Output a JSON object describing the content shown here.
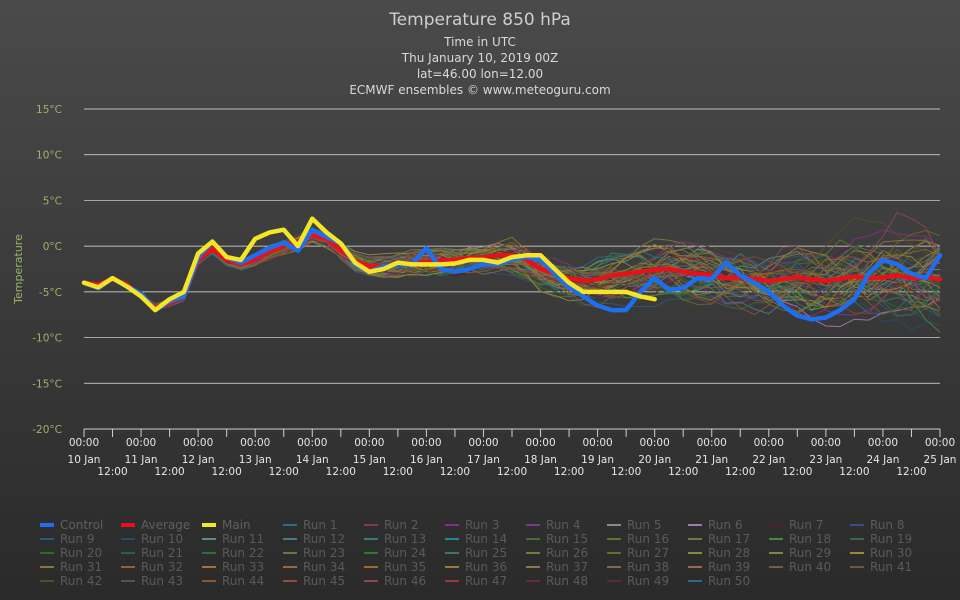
{
  "chart_data": {
    "type": "line",
    "title": "Temperature 850 hPa",
    "subtitles": [
      "Time in UTC",
      "Thu January 10, 2019 00Z",
      "lat=46.00 lon=12.00",
      "ECMWF ensembles © www.meteoguru.com"
    ],
    "ylabel": "Temperature",
    "unit": "°C",
    "ylim": [
      -20,
      15
    ],
    "yticks": [
      15,
      10,
      5,
      0,
      -5,
      -10,
      -15,
      -20
    ],
    "ytick_labels": [
      "15°C",
      "10°C",
      "5°C",
      "0°C",
      "-5°C",
      "-10°C",
      "-15°C",
      "-20°C"
    ],
    "xrange": [
      "2019-01-10 00:00",
      "2019-01-25 00:00"
    ],
    "xticks_major": [
      {
        "time": "00:00",
        "date": "10 Jan"
      },
      {
        "time": "00:00",
        "date": "11 Jan"
      },
      {
        "time": "00:00",
        "date": "12 Jan"
      },
      {
        "time": "00:00",
        "date": "13 Jan"
      },
      {
        "time": "00:00",
        "date": "14 Jan"
      },
      {
        "time": "00:00",
        "date": "15 Jan"
      },
      {
        "time": "00:00",
        "date": "16 Jan"
      },
      {
        "time": "00:00",
        "date": "17 Jan"
      },
      {
        "time": "00:00",
        "date": "18 Jan"
      },
      {
        "time": "00:00",
        "date": "19 Jan"
      },
      {
        "time": "00:00",
        "date": "20 Jan"
      },
      {
        "time": "00:00",
        "date": "21 Jan"
      },
      {
        "time": "00:00",
        "date": "22 Jan"
      },
      {
        "time": "00:00",
        "date": "23 Jan"
      },
      {
        "time": "00:00",
        "date": "24 Jan"
      },
      {
        "time": "00:00",
        "date": "25 Jan"
      }
    ],
    "xticks_minor": [
      "12:00",
      "12:00",
      "12:00",
      "12:00",
      "12:00",
      "12:00",
      "12:00",
      "12:00",
      "12:00",
      "12:00",
      "12:00",
      "12:00",
      "12:00",
      "12:00",
      "12:00"
    ],
    "grid": true,
    "legend_position": "bottom",
    "series": [
      {
        "name": "Control",
        "color": "#1e6ff0",
        "width": 4.5,
        "points": [
          [
            "2019-01-10 00:00",
            -4
          ],
          [
            "2019-01-10 06:00",
            -4.6
          ],
          [
            "2019-01-10 12:00",
            -3.5
          ],
          [
            "2019-01-10 18:00",
            -4.4
          ],
          [
            "2019-01-11 00:00",
            -5.2
          ],
          [
            "2019-01-11 06:00",
            -7
          ],
          [
            "2019-01-11 12:00",
            -6
          ],
          [
            "2019-01-11 18:00",
            -5.5
          ],
          [
            "2019-01-12 00:00",
            -1.2
          ],
          [
            "2019-01-12 06:00",
            0.5
          ],
          [
            "2019-01-12 12:00",
            -1.2
          ],
          [
            "2019-01-12 18:00",
            -1.8
          ],
          [
            "2019-01-13 00:00",
            -1
          ],
          [
            "2019-01-13 06:00",
            -0.2
          ],
          [
            "2019-01-13 12:00",
            0.4
          ],
          [
            "2019-01-13 18:00",
            -0.5
          ],
          [
            "2019-01-14 00:00",
            1.8
          ],
          [
            "2019-01-14 06:00",
            1
          ],
          [
            "2019-01-14 12:00",
            0.3
          ],
          [
            "2019-01-14 18:00",
            -2
          ],
          [
            "2019-01-15 00:00",
            -2.8
          ],
          [
            "2019-01-15 06:00",
            -2.2
          ],
          [
            "2019-01-15 12:00",
            -2
          ],
          [
            "2019-01-15 18:00",
            -2
          ],
          [
            "2019-01-16 00:00",
            -0.2
          ],
          [
            "2019-01-16 06:00",
            -2.5
          ],
          [
            "2019-01-16 12:00",
            -2.8
          ],
          [
            "2019-01-16 18:00",
            -2.5
          ],
          [
            "2019-01-17 00:00",
            -2
          ],
          [
            "2019-01-17 06:00",
            -2
          ],
          [
            "2019-01-17 12:00",
            -1.5
          ],
          [
            "2019-01-17 18:00",
            -1.2
          ],
          [
            "2019-01-18 00:00",
            -1.5
          ],
          [
            "2019-01-18 06:00",
            -3
          ],
          [
            "2019-01-18 12:00",
            -4.5
          ],
          [
            "2019-01-18 18:00",
            -5.5
          ],
          [
            "2019-01-19 00:00",
            -6.5
          ],
          [
            "2019-01-19 06:00",
            -7
          ],
          [
            "2019-01-19 12:00",
            -7
          ],
          [
            "2019-01-19 18:00",
            -5
          ],
          [
            "2019-01-20 00:00",
            -3.5
          ],
          [
            "2019-01-20 06:00",
            -4.8
          ],
          [
            "2019-01-20 12:00",
            -4.6
          ],
          [
            "2019-01-20 18:00",
            -3.5
          ],
          [
            "2019-01-21 00:00",
            -3.6
          ],
          [
            "2019-01-21 06:00",
            -1.8
          ],
          [
            "2019-01-21 12:00",
            -3.2
          ],
          [
            "2019-01-21 18:00",
            -4
          ],
          [
            "2019-01-22 00:00",
            -5
          ],
          [
            "2019-01-22 06:00",
            -6.5
          ],
          [
            "2019-01-22 12:00",
            -7.6
          ],
          [
            "2019-01-22 18:00",
            -8
          ],
          [
            "2019-01-23 00:00",
            -7.8
          ],
          [
            "2019-01-23 06:00",
            -7
          ],
          [
            "2019-01-23 12:00",
            -5.8
          ],
          [
            "2019-01-23 18:00",
            -3
          ],
          [
            "2019-01-24 00:00",
            -1.5
          ],
          [
            "2019-01-24 06:00",
            -2
          ],
          [
            "2019-01-24 12:00",
            -3
          ],
          [
            "2019-01-24 18:00",
            -3.5
          ],
          [
            "2019-01-25 00:00",
            -1
          ]
        ]
      },
      {
        "name": "Average",
        "color": "#e8111a",
        "width": 4.5,
        "points": [
          [
            "2019-01-10 00:00",
            -4
          ],
          [
            "2019-01-10 06:00",
            -4.2
          ],
          [
            "2019-01-10 12:00",
            -3.6
          ],
          [
            "2019-01-10 18:00",
            -4.2
          ],
          [
            "2019-01-11 00:00",
            -5.5
          ],
          [
            "2019-01-11 06:00",
            -6.7
          ],
          [
            "2019-01-11 12:00",
            -6.2
          ],
          [
            "2019-01-11 18:00",
            -5.5
          ],
          [
            "2019-01-12 00:00",
            -1.5
          ],
          [
            "2019-01-12 06:00",
            -0.3
          ],
          [
            "2019-01-12 12:00",
            -1.5
          ],
          [
            "2019-01-12 18:00",
            -2
          ],
          [
            "2019-01-13 00:00",
            -1.5
          ],
          [
            "2019-01-13 06:00",
            -0.6
          ],
          [
            "2019-01-13 12:00",
            0
          ],
          [
            "2019-01-13 18:00",
            0.5
          ],
          [
            "2019-01-14 00:00",
            1.2
          ],
          [
            "2019-01-14 06:00",
            0.8
          ],
          [
            "2019-01-14 12:00",
            -0.5
          ],
          [
            "2019-01-14 18:00",
            -1.7
          ],
          [
            "2019-01-15 00:00",
            -2.2
          ],
          [
            "2019-01-15 06:00",
            -2.2
          ],
          [
            "2019-01-15 12:00",
            -2
          ],
          [
            "2019-01-15 18:00",
            -1.8
          ],
          [
            "2019-01-16 00:00",
            -1.7
          ],
          [
            "2019-01-16 06:00",
            -1.6
          ],
          [
            "2019-01-16 12:00",
            -1.5
          ],
          [
            "2019-01-16 18:00",
            -1.3
          ],
          [
            "2019-01-17 00:00",
            -1.2
          ],
          [
            "2019-01-17 06:00",
            -1
          ],
          [
            "2019-01-17 12:00",
            -1
          ],
          [
            "2019-01-17 18:00",
            -1.5
          ],
          [
            "2019-01-18 00:00",
            -2.5
          ],
          [
            "2019-01-18 06:00",
            -3
          ],
          [
            "2019-01-18 12:00",
            -3.5
          ],
          [
            "2019-01-18 18:00",
            -3.8
          ],
          [
            "2019-01-19 00:00",
            -3.6
          ],
          [
            "2019-01-19 06:00",
            -3.2
          ],
          [
            "2019-01-19 12:00",
            -3
          ],
          [
            "2019-01-19 18:00",
            -2.8
          ],
          [
            "2019-01-20 00:00",
            -2.6
          ],
          [
            "2019-01-20 06:00",
            -2.5
          ],
          [
            "2019-01-20 12:00",
            -2.8
          ],
          [
            "2019-01-20 18:00",
            -3
          ],
          [
            "2019-01-21 00:00",
            -3.2
          ],
          [
            "2019-01-21 06:00",
            -3.5
          ],
          [
            "2019-01-21 12:00",
            -3.4
          ],
          [
            "2019-01-21 18:00",
            -3.6
          ],
          [
            "2019-01-22 00:00",
            -3.8
          ],
          [
            "2019-01-22 06:00",
            -3.6
          ],
          [
            "2019-01-22 12:00",
            -3.4
          ],
          [
            "2019-01-22 18:00",
            -3.6
          ],
          [
            "2019-01-23 00:00",
            -3.8
          ],
          [
            "2019-01-23 06:00",
            -3.6
          ],
          [
            "2019-01-23 12:00",
            -3.3
          ],
          [
            "2019-01-23 18:00",
            -3.5
          ],
          [
            "2019-01-24 00:00",
            -3.4
          ],
          [
            "2019-01-24 06:00",
            -3.2
          ],
          [
            "2019-01-24 12:00",
            -3.5
          ],
          [
            "2019-01-24 18:00",
            -3.4
          ],
          [
            "2019-01-25 00:00",
            -3.6
          ]
        ]
      },
      {
        "name": "Main",
        "color": "#f5e625",
        "width": 4.5,
        "points": [
          [
            "2019-01-10 00:00",
            -4
          ],
          [
            "2019-01-10 06:00",
            -4.5
          ],
          [
            "2019-01-10 12:00",
            -3.5
          ],
          [
            "2019-01-10 18:00",
            -4.4
          ],
          [
            "2019-01-11 00:00",
            -5.5
          ],
          [
            "2019-01-11 06:00",
            -7
          ],
          [
            "2019-01-11 12:00",
            -5.8
          ],
          [
            "2019-01-11 18:00",
            -5
          ],
          [
            "2019-01-12 00:00",
            -0.8
          ],
          [
            "2019-01-12 06:00",
            0.5
          ],
          [
            "2019-01-12 12:00",
            -1.2
          ],
          [
            "2019-01-12 18:00",
            -1.5
          ],
          [
            "2019-01-13 00:00",
            0.8
          ],
          [
            "2019-01-13 06:00",
            1.5
          ],
          [
            "2019-01-13 12:00",
            1.8
          ],
          [
            "2019-01-13 18:00",
            0
          ],
          [
            "2019-01-14 00:00",
            3
          ],
          [
            "2019-01-14 06:00",
            1.5
          ],
          [
            "2019-01-14 12:00",
            0.3
          ],
          [
            "2019-01-14 18:00",
            -1.8
          ],
          [
            "2019-01-15 00:00",
            -2.8
          ],
          [
            "2019-01-15 06:00",
            -2.5
          ],
          [
            "2019-01-15 12:00",
            -1.8
          ],
          [
            "2019-01-15 18:00",
            -2
          ],
          [
            "2019-01-16 00:00",
            -2
          ],
          [
            "2019-01-16 06:00",
            -2
          ],
          [
            "2019-01-16 12:00",
            -1.9
          ],
          [
            "2019-01-16 18:00",
            -1.5
          ],
          [
            "2019-01-17 00:00",
            -1.5
          ],
          [
            "2019-01-17 06:00",
            -1.8
          ],
          [
            "2019-01-17 12:00",
            -1.2
          ],
          [
            "2019-01-17 18:00",
            -1
          ],
          [
            "2019-01-18 00:00",
            -1
          ],
          [
            "2019-01-18 06:00",
            -2.5
          ],
          [
            "2019-01-18 12:00",
            -4
          ],
          [
            "2019-01-18 18:00",
            -5
          ],
          [
            "2019-01-19 00:00",
            -5
          ],
          [
            "2019-01-19 06:00",
            -5
          ],
          [
            "2019-01-19 12:00",
            -5
          ],
          [
            "2019-01-19 18:00",
            -5.5
          ],
          [
            "2019-01-20 00:00",
            -5.8
          ]
        ]
      }
    ],
    "legend": [
      {
        "name": "Control",
        "color": "#1e6ff0",
        "hidden": false
      },
      {
        "name": "Average",
        "color": "#e8111a",
        "hidden": false
      },
      {
        "name": "Main",
        "color": "#f5e625",
        "hidden": false
      },
      {
        "name": "Run 1",
        "color": "#2b6c93",
        "hidden": true
      },
      {
        "name": "Run 2",
        "color": "#8a3555",
        "hidden": true
      },
      {
        "name": "Run 3",
        "color": "#8a2a8a",
        "hidden": true
      },
      {
        "name": "Run 4",
        "color": "#7a3a8a",
        "hidden": true
      },
      {
        "name": "Run 5",
        "color": "#8a8a8a",
        "hidden": true
      },
      {
        "name": "Run 6",
        "color": "#a07ab0",
        "hidden": true
      },
      {
        "name": "Run 7",
        "color": "#5a1a2a",
        "hidden": true
      },
      {
        "name": "Run 8",
        "color": "#3f4a8a",
        "hidden": true
      },
      {
        "name": "Run 9",
        "color": "#2a5a7a",
        "hidden": true
      },
      {
        "name": "Run 10",
        "color": "#2a4a6a",
        "hidden": true
      },
      {
        "name": "Run 11",
        "color": "#5a8a8a",
        "hidden": true
      },
      {
        "name": "Run 12",
        "color": "#4a7a8a",
        "hidden": true
      },
      {
        "name": "Run 13",
        "color": "#3a7a7a",
        "hidden": true
      },
      {
        "name": "Run 14",
        "color": "#1a8a9a",
        "hidden": true
      },
      {
        "name": "Run 15",
        "color": "#4a6a3a",
        "hidden": true
      },
      {
        "name": "Run 16",
        "color": "#5a7a2a",
        "hidden": true
      },
      {
        "name": "Run 17",
        "color": "#6a7a3a",
        "hidden": true
      },
      {
        "name": "Run 18",
        "color": "#4a8a3a",
        "hidden": true
      },
      {
        "name": "Run 19",
        "color": "#3a6a4a",
        "hidden": true
      },
      {
        "name": "Run 20",
        "color": "#2a6a2a",
        "hidden": true
      },
      {
        "name": "Run 21",
        "color": "#2a5a5a",
        "hidden": true
      },
      {
        "name": "Run 22",
        "color": "#3a6a3a",
        "hidden": true
      },
      {
        "name": "Run 23",
        "color": "#5a7a4a",
        "hidden": true
      },
      {
        "name": "Run 24",
        "color": "#2a7a2a",
        "hidden": true
      },
      {
        "name": "Run 25",
        "color": "#3a7a5a",
        "hidden": true
      },
      {
        "name": "Run 26",
        "color": "#7a7a3a",
        "hidden": true
      },
      {
        "name": "Run 27",
        "color": "#6a6a2a",
        "hidden": true
      },
      {
        "name": "Run 28",
        "color": "#8a8a3a",
        "hidden": true
      },
      {
        "name": "Run 29",
        "color": "#7a8a4a",
        "hidden": true
      },
      {
        "name": "Run 30",
        "color": "#9a8a3a",
        "hidden": true
      },
      {
        "name": "Run 31",
        "color": "#8a7a2a",
        "hidden": true
      },
      {
        "name": "Run 32",
        "color": "#8a6a2a",
        "hidden": true
      },
      {
        "name": "Run 33",
        "color": "#9a7a2a",
        "hidden": true
      },
      {
        "name": "Run 34",
        "color": "#9a6a3a",
        "hidden": true
      },
      {
        "name": "Run 35",
        "color": "#a06a2a",
        "hidden": true
      },
      {
        "name": "Run 36",
        "color": "#9a7a3a",
        "hidden": true
      },
      {
        "name": "Run 37",
        "color": "#8a7a4a",
        "hidden": true
      },
      {
        "name": "Run 38",
        "color": "#7a6a4a",
        "hidden": true
      },
      {
        "name": "Run 39",
        "color": "#9a6a4a",
        "hidden": true
      },
      {
        "name": "Run 40",
        "color": "#7a5a3a",
        "hidden": true
      },
      {
        "name": "Run 41",
        "color": "#6a5a3a",
        "hidden": true
      },
      {
        "name": "Run 42",
        "color": "#5a4a2a",
        "hidden": true
      },
      {
        "name": "Run 43",
        "color": "#4a5a3a",
        "hidden": true
      },
      {
        "name": "Run 44",
        "color": "#8a5a2a",
        "hidden": true
      },
      {
        "name": "Run 45",
        "color": "#9a4a3a",
        "hidden": true
      },
      {
        "name": "Run 46",
        "color": "#8a4a4a",
        "hidden": true
      },
      {
        "name": "Run 47",
        "color": "#9a3a3a",
        "hidden": true
      },
      {
        "name": "Run 48",
        "color": "#6a2a3a",
        "hidden": true
      },
      {
        "name": "Run 49",
        "color": "#5a2a3a",
        "hidden": true
      },
      {
        "name": "Run 50",
        "color": "#2a6a8a",
        "hidden": true
      }
    ]
  }
}
